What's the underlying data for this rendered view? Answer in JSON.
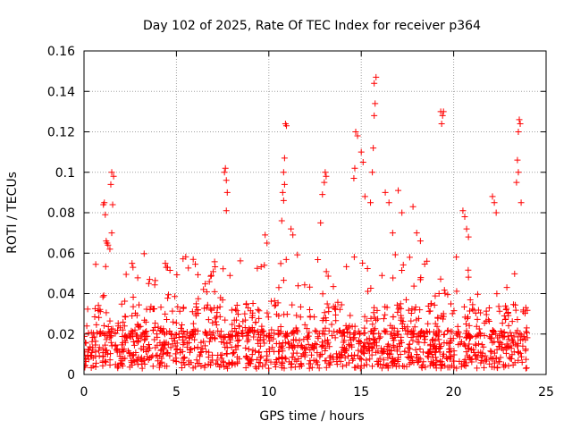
{
  "chart_data": {
    "type": "scatter",
    "title": "Day 102 of 2025, Rate Of TEC Index for receiver p364",
    "xlabel": "GPS time / hours",
    "ylabel": "ROTI / TECUs",
    "xlim": [
      0,
      25
    ],
    "ylim": [
      0,
      0.16
    ],
    "x_ticks": [
      0,
      5,
      10,
      15,
      20,
      25
    ],
    "x_tick_labels": [
      "0",
      "5",
      "10",
      "15",
      "20",
      "25"
    ],
    "y_ticks": [
      0,
      0.02,
      0.04,
      0.06,
      0.08,
      0.1,
      0.12,
      0.14,
      0.16
    ],
    "y_tick_labels": [
      "0",
      "0.02",
      "0.04",
      "0.06",
      "0.08",
      "0.1",
      "0.12",
      "0.14",
      "0.16"
    ],
    "grid": true,
    "marker": "+",
    "series": [
      {
        "name": "ROTI",
        "color": "#ff0000",
        "x": [
          1.05,
          1.1,
          1.15,
          1.2,
          1.25,
          1.3,
          1.4,
          1.5,
          1.55,
          1.6,
          1.5,
          1.45,
          2.6,
          2.65,
          3.5,
          3.55,
          4.4,
          4.45,
          7.6,
          7.65,
          7.7,
          7.75,
          7.7,
          9.8,
          9.9,
          10.7,
          10.75,
          10.8,
          10.85,
          10.9,
          10.95,
          10.8,
          10.85,
          11.2,
          11.3,
          12.8,
          12.9,
          13.0,
          13.05,
          13.1,
          14.6,
          14.65,
          14.7,
          14.8,
          15.0,
          15.1,
          15.2,
          15.5,
          15.6,
          15.65,
          15.7,
          15.75,
          15.7,
          15.8,
          16.3,
          16.5,
          16.7,
          17.0,
          17.2,
          17.8,
          18.0,
          18.2,
          19.3,
          19.35,
          19.4,
          19.45,
          20.5,
          20.6,
          20.7,
          20.8,
          22.1,
          22.2,
          22.3,
          23.4,
          23.45,
          23.5,
          23.55,
          23.6,
          23.5,
          23.65
        ],
        "y": [
          0.084,
          0.085,
          0.079,
          0.066,
          0.065,
          0.064,
          0.062,
          0.07,
          0.084,
          0.098,
          0.1,
          0.094,
          0.055,
          0.053,
          0.045,
          0.047,
          0.055,
          0.053,
          0.1,
          0.102,
          0.096,
          0.09,
          0.081,
          0.069,
          0.065,
          0.076,
          0.09,
          0.1,
          0.107,
          0.124,
          0.123,
          0.086,
          0.094,
          0.072,
          0.069,
          0.075,
          0.089,
          0.095,
          0.1,
          0.098,
          0.097,
          0.102,
          0.12,
          0.118,
          0.11,
          0.105,
          0.088,
          0.085,
          0.1,
          0.112,
          0.128,
          0.134,
          0.144,
          0.147,
          0.09,
          0.085,
          0.07,
          0.091,
          0.08,
          0.083,
          0.07,
          0.066,
          0.13,
          0.124,
          0.128,
          0.13,
          0.081,
          0.078,
          0.072,
          0.068,
          0.088,
          0.085,
          0.08,
          0.095,
          0.106,
          0.12,
          0.126,
          0.124,
          0.1,
          0.085
        ]
      }
    ],
    "noise_band": {
      "description": "dense cloud of ROTI samples across 0-24 h",
      "x_range": [
        0,
        24
      ],
      "typical_range": [
        0.003,
        0.035
      ],
      "occasional_max": 0.06
    }
  }
}
